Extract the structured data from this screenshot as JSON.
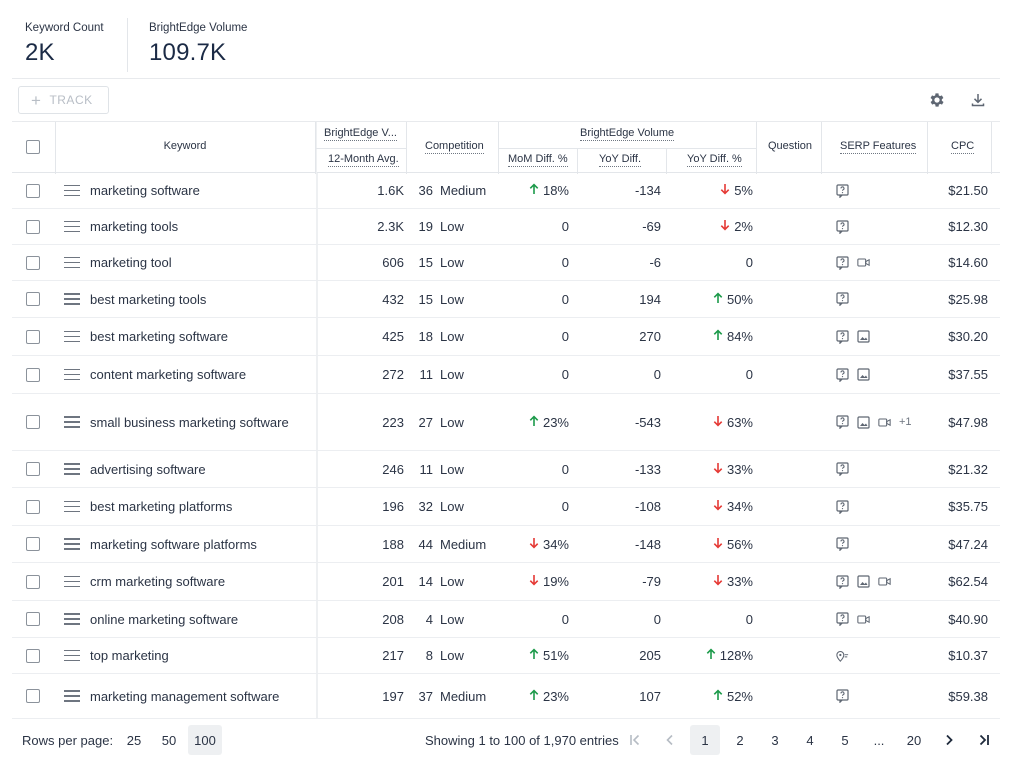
{
  "stats": {
    "keyword_count_label": "Keyword Count",
    "keyword_count_value": "2K",
    "volume_label": "BrightEdge Volume",
    "volume_value": "109.7K"
  },
  "toolbar": {
    "track_label": "TRACK",
    "settings_icon": "gear-icon",
    "download_icon": "download-icon"
  },
  "table": {
    "headers": {
      "keyword": "Keyword",
      "volume_top": "BrightEdge V...",
      "volume_avg": "12-Month Avg.",
      "competition": "Competition",
      "volume_group": "BrightEdge Volume",
      "mom": "MoM Diff. %",
      "yoy": "YoY Diff.",
      "yoy_pct": "YoY Diff. %",
      "question": "Question",
      "serp": "SERP Features",
      "cpc": "CPC"
    },
    "rows": [
      {
        "keyword": "marketing software",
        "volume": "1.6K",
        "comp_num": "36",
        "comp_label": "Medium",
        "mom": "18%",
        "mom_dir": "up",
        "yoy": "-134",
        "yoy_pct": "5%",
        "yoy_pct_dir": "down",
        "serp": [
          "question"
        ],
        "serp_more": "",
        "cpc": "$21.50"
      },
      {
        "keyword": "marketing tools",
        "volume": "2.3K",
        "comp_num": "19",
        "comp_label": "Low",
        "mom": "0",
        "mom_dir": "",
        "yoy": "-69",
        "yoy_pct": "2%",
        "yoy_pct_dir": "down",
        "serp": [
          "question"
        ],
        "serp_more": "",
        "cpc": "$12.30"
      },
      {
        "keyword": "marketing tool",
        "volume": "606",
        "comp_num": "15",
        "comp_label": "Low",
        "mom": "0",
        "mom_dir": "",
        "yoy": "-6",
        "yoy_pct": "0",
        "yoy_pct_dir": "",
        "serp": [
          "question",
          "video"
        ],
        "serp_more": "",
        "cpc": "$14.60"
      },
      {
        "keyword": "best marketing tools",
        "volume": "432",
        "comp_num": "15",
        "comp_label": "Low",
        "mom": "0",
        "mom_dir": "",
        "yoy": "194",
        "yoy_pct": "50%",
        "yoy_pct_dir": "up",
        "serp": [
          "question"
        ],
        "serp_more": "",
        "cpc": "$25.98"
      },
      {
        "keyword": "best marketing software",
        "volume": "425",
        "comp_num": "18",
        "comp_label": "Low",
        "mom": "0",
        "mom_dir": "",
        "yoy": "270",
        "yoy_pct": "84%",
        "yoy_pct_dir": "up",
        "serp": [
          "question",
          "image"
        ],
        "serp_more": "",
        "cpc": "$30.20"
      },
      {
        "keyword": "content marketing software",
        "volume": "272",
        "comp_num": "11",
        "comp_label": "Low",
        "mom": "0",
        "mom_dir": "",
        "yoy": "0",
        "yoy_pct": "0",
        "yoy_pct_dir": "",
        "serp": [
          "question",
          "image"
        ],
        "serp_more": "",
        "cpc": "$37.55"
      },
      {
        "keyword": "small business marketing software",
        "volume": "223",
        "comp_num": "27",
        "comp_label": "Low",
        "mom": "23%",
        "mom_dir": "up",
        "yoy": "-543",
        "yoy_pct": "63%",
        "yoy_pct_dir": "down",
        "serp": [
          "question",
          "image",
          "video"
        ],
        "serp_more": "+1",
        "cpc": "$47.98"
      },
      {
        "keyword": "advertising software",
        "volume": "246",
        "comp_num": "11",
        "comp_label": "Low",
        "mom": "0",
        "mom_dir": "",
        "yoy": "-133",
        "yoy_pct": "33%",
        "yoy_pct_dir": "down",
        "serp": [
          "question"
        ],
        "serp_more": "",
        "cpc": "$21.32"
      },
      {
        "keyword": "best marketing platforms",
        "volume": "196",
        "comp_num": "32",
        "comp_label": "Low",
        "mom": "0",
        "mom_dir": "",
        "yoy": "-108",
        "yoy_pct": "34%",
        "yoy_pct_dir": "down",
        "serp": [
          "question"
        ],
        "serp_more": "",
        "cpc": "$35.75"
      },
      {
        "keyword": "marketing software platforms",
        "volume": "188",
        "comp_num": "44",
        "comp_label": "Medium",
        "mom": "34%",
        "mom_dir": "down",
        "yoy": "-148",
        "yoy_pct": "56%",
        "yoy_pct_dir": "down",
        "serp": [
          "question"
        ],
        "serp_more": "",
        "cpc": "$47.24"
      },
      {
        "keyword": "crm marketing software",
        "volume": "201",
        "comp_num": "14",
        "comp_label": "Low",
        "mom": "19%",
        "mom_dir": "down",
        "yoy": "-79",
        "yoy_pct": "33%",
        "yoy_pct_dir": "down",
        "serp": [
          "question",
          "image",
          "video"
        ],
        "serp_more": "",
        "cpc": "$62.54"
      },
      {
        "keyword": "online marketing software",
        "volume": "208",
        "comp_num": "4",
        "comp_label": "Low",
        "mom": "0",
        "mom_dir": "",
        "yoy": "0",
        "yoy_pct": "0",
        "yoy_pct_dir": "",
        "serp": [
          "question",
          "video"
        ],
        "serp_more": "",
        "cpc": "$40.90"
      },
      {
        "keyword": "top marketing",
        "volume": "217",
        "comp_num": "8",
        "comp_label": "Low",
        "mom": "51%",
        "mom_dir": "up",
        "yoy": "205",
        "yoy_pct": "128%",
        "yoy_pct_dir": "up",
        "serp": [
          "local"
        ],
        "serp_more": "",
        "cpc": "$10.37"
      },
      {
        "keyword": "marketing management software",
        "volume": "197",
        "comp_num": "37",
        "comp_label": "Medium",
        "mom": "23%",
        "mom_dir": "up",
        "yoy": "107",
        "yoy_pct": "52%",
        "yoy_pct_dir": "up",
        "serp": [
          "question"
        ],
        "serp_more": "",
        "cpc": "$59.38"
      }
    ]
  },
  "pagination": {
    "rows_per_page_label": "Rows per page:",
    "rows_options": [
      "25",
      "50",
      "100"
    ],
    "rows_selected": "100",
    "showing": "Showing 1 to 100 of 1,970 entries",
    "pages": [
      "1",
      "2",
      "3",
      "4",
      "5",
      "...",
      "20"
    ],
    "current_page": "1"
  },
  "colors": {
    "up": "#1c9a4a",
    "down": "#e53935",
    "text": "#2b3445",
    "border": "#e3e6ea"
  }
}
